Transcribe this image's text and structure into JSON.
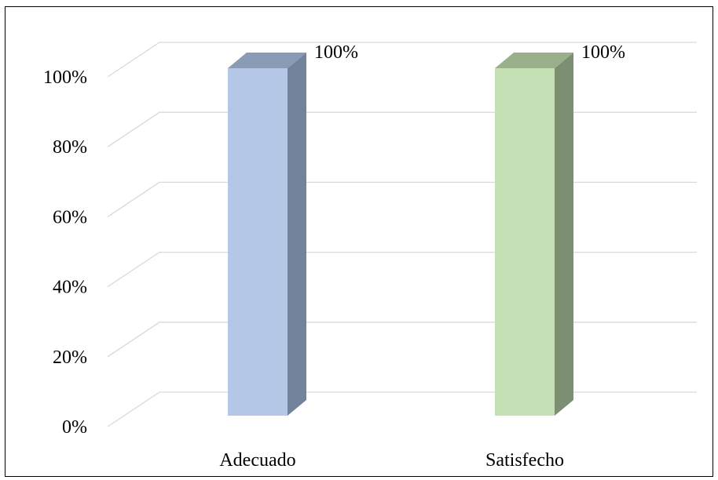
{
  "chart_data": {
    "type": "bar",
    "style": "3d-column",
    "categories": [
      "Adecuado",
      "Satisfecho"
    ],
    "values": [
      100,
      100
    ],
    "data_labels": [
      "100%",
      "100%"
    ],
    "y_ticks": [
      "0%",
      "20%",
      "40%",
      "60%",
      "80%",
      "100%"
    ],
    "ylim": [
      0,
      100
    ],
    "grid": true,
    "legend": "none",
    "colors": {
      "bars": [
        {
          "front": "#b4c7e7",
          "side": "#74839c",
          "top": "#8a9bb5"
        },
        {
          "front": "#c5e0b4",
          "side": "#7d8f73",
          "top": "#99b08a"
        }
      ],
      "gridline": "#d9d9d9",
      "text": "#000000"
    }
  }
}
